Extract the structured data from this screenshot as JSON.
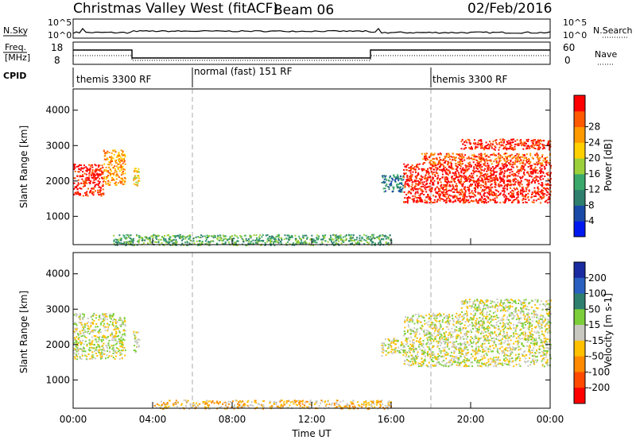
{
  "header": {
    "radar": "Christmas Valley West (fitACF)",
    "beam": "Beam 06",
    "date": "02/Feb/2016"
  },
  "panels": {
    "nsky_label": "N.Sky",
    "nsearch_label": "N.Search",
    "freq_label_line1": "Freq.",
    "freq_label_line2": "[MHz]",
    "nave_label": "Nave",
    "cpid_label": "CPID",
    "nsky_ticks": [
      "10^5",
      "10^0"
    ],
    "nsearch_ticks": [
      "10^5",
      "10^0"
    ],
    "freq_ticks": [
      "18",
      "8"
    ],
    "nave_ticks": [
      "60",
      "0"
    ],
    "cpid_segments": [
      {
        "label": "themis 3300 RF",
        "start_hour": 0
      },
      {
        "label": "normal (fast) 151 RF",
        "start_hour": 6
      },
      {
        "label": "themis 3300 RF",
        "start_hour": 18
      }
    ]
  },
  "colors": {
    "power": [
      "#0018f0",
      "#1a4aa8",
      "#2e7f6e",
      "#3aa86a",
      "#9bd03a",
      "#ffd000",
      "#ff9a00",
      "#ff5a00",
      "#ff0000"
    ],
    "velocity": [
      "#1a2aa0",
      "#2a60c0",
      "#2e7f6e",
      "#7ccf3a",
      "#c8c8c0",
      "#ffc000",
      "#ff8a00",
      "#ff4a00",
      "#ff0000"
    ],
    "ground_scatter": "#c8c8c0"
  },
  "chart_data": [
    {
      "type": "heatmap",
      "name": "power",
      "ylabel": "Slant Range [km]",
      "yticks": [
        "1000",
        "2000",
        "3000",
        "4000"
      ],
      "ylim": [
        200,
        4600
      ],
      "colorbar_label": "Power [dB]",
      "colorbar_ticks": [
        "4",
        "8",
        "12",
        "16",
        "20",
        "24",
        "28"
      ],
      "scatter_regions": [
        {
          "t0": 0.0,
          "t1": 1.5,
          "r0": 1600,
          "r1": 2500,
          "level": 8
        },
        {
          "t0": 1.5,
          "t1": 2.6,
          "r0": 1900,
          "r1": 2900,
          "level": 6
        },
        {
          "t0": 3.0,
          "t1": 3.3,
          "r0": 1800,
          "r1": 2400,
          "level": 5
        },
        {
          "t0": 15.5,
          "t1": 16.6,
          "r0": 1700,
          "r1": 2200,
          "level": 2
        },
        {
          "t0": 16.6,
          "t1": 24.0,
          "r0": 1400,
          "r1": 2500,
          "level": 8
        },
        {
          "t0": 17.5,
          "t1": 24.0,
          "r0": 2500,
          "r1": 2800,
          "level": 7
        },
        {
          "t0": 19.5,
          "t1": 24.0,
          "r0": 2900,
          "r1": 3200,
          "level": 8
        },
        {
          "t0": 2.0,
          "t1": 16.0,
          "r0": 200,
          "r1": 500,
          "level": 3
        }
      ]
    },
    {
      "type": "heatmap",
      "name": "velocity",
      "xlabel": "Time UT",
      "ylabel": "Slant Range [km]",
      "yticks": [
        "1000",
        "2000",
        "3000",
        "4000"
      ],
      "ylim": [
        200,
        4600
      ],
      "colorbar_label": "Velocity [m s-1]",
      "colorbar_ticks": [
        "200",
        "100",
        "50",
        "15",
        "-15",
        "-50",
        "-100",
        "-200"
      ],
      "xticks": [
        "00:00",
        "04:00",
        "08:00",
        "12:00",
        "16:00",
        "20:00",
        "00:00"
      ],
      "xlim": [
        0,
        24
      ],
      "scatter_regions": [
        {
          "t0": 0.0,
          "t1": 2.6,
          "r0": 1600,
          "r1": 2900,
          "level": 4
        },
        {
          "t0": 3.0,
          "t1": 3.3,
          "r0": 1800,
          "r1": 2400,
          "level": 4
        },
        {
          "t0": 15.5,
          "t1": 16.6,
          "r0": 1700,
          "r1": 2200,
          "level": 4
        },
        {
          "t0": 16.6,
          "t1": 24.0,
          "r0": 1400,
          "r1": 2900,
          "level": 4
        },
        {
          "t0": 19.5,
          "t1": 24.0,
          "r0": 2900,
          "r1": 3300,
          "level": 4
        },
        {
          "t0": 4.0,
          "t1": 16.0,
          "r0": 200,
          "r1": 450,
          "level": 5
        }
      ]
    }
  ]
}
